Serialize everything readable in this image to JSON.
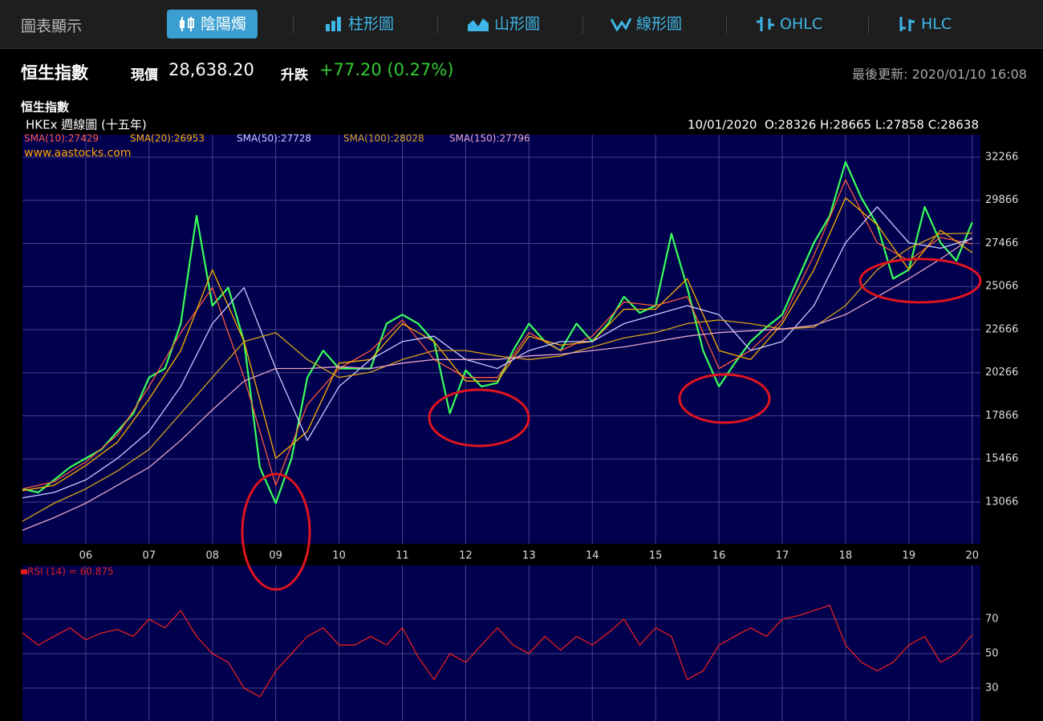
{
  "nav": {
    "label": "圖表顯示",
    "tabs": [
      "陰陽燭",
      "柱形圖",
      "山形圖",
      "線形圖",
      "OHLC",
      "HLC"
    ],
    "active": 0
  },
  "header": {
    "name": "恒生指數",
    "price_label": "現價",
    "price": "28,638.20",
    "change_label": "升跌",
    "change": "+77.20 (0.27%)",
    "updated": "最後更新: 2020/01/10 16:08"
  },
  "chart_data": [
    {
      "type": "line",
      "title": "恒生指數",
      "subtitle": "HKEx 週線圖 (十五年)",
      "annotations": [
        "10/01/2020  O:28326 H:28665 L:27858 C:28638",
        "www.aastocks.com"
      ],
      "xlim": [
        2005,
        2020.13
      ],
      "xticks": [
        {
          "value": 2006,
          "label": "06"
        },
        {
          "value": 2007,
          "label": "07"
        },
        {
          "value": 2008,
          "label": "08"
        },
        {
          "value": 2009,
          "label": "09"
        },
        {
          "value": 2010,
          "label": "10"
        },
        {
          "value": 2011,
          "label": "11"
        },
        {
          "value": 2012,
          "label": "12"
        },
        {
          "value": 2013,
          "label": "13"
        },
        {
          "value": 2014,
          "label": "14"
        },
        {
          "value": 2015,
          "label": "15"
        },
        {
          "value": 2016,
          "label": "16"
        },
        {
          "value": 2017,
          "label": "17"
        },
        {
          "value": 2018,
          "label": "18"
        },
        {
          "value": 2019,
          "label": "19"
        },
        {
          "value": 2020,
          "label": "20"
        }
      ],
      "ylim": [
        10744,
        33516
      ],
      "yticks": [
        13066,
        15466,
        17866,
        20266,
        22666,
        25066,
        27466,
        29866,
        32266
      ],
      "grid": true,
      "series": [
        {
          "color": "#39ff5a",
          "x": [
            2005,
            2005.25,
            2005.5,
            2005.75,
            2006,
            2006.25,
            2006.5,
            2006.75,
            2007,
            2007.25,
            2007.5,
            2007.75,
            2008,
            2008.25,
            2008.5,
            2008.75,
            2009,
            2009.25,
            2009.5,
            2009.75,
            2010,
            2010.25,
            2010.5,
            2010.75,
            2011,
            2011.25,
            2011.5,
            2011.75,
            2012,
            2012.25,
            2012.5,
            2012.75,
            2013,
            2013.25,
            2013.5,
            2013.75,
            2014,
            2014.25,
            2014.5,
            2014.75,
            2015,
            2015.25,
            2015.5,
            2015.75,
            2016,
            2016.25,
            2016.5,
            2016.75,
            2017,
            2017.25,
            2017.5,
            2017.75,
            2018,
            2018.25,
            2018.5,
            2018.75,
            2019,
            2019.25,
            2019.5,
            2019.75,
            2020
          ],
          "values": [
            13800,
            13600,
            14300,
            15000,
            15500,
            16000,
            17000,
            18000,
            20000,
            20500,
            23000,
            29000,
            24000,
            25000,
            22000,
            15000,
            13000,
            15500,
            20000,
            21500,
            20500,
            20500,
            20500,
            23000,
            23500,
            23000,
            22000,
            18000,
            20400,
            19500,
            19700,
            21500,
            23000,
            22000,
            21500,
            23000,
            22000,
            23000,
            24500,
            23600,
            24000,
            28000,
            25000,
            21500,
            19500,
            20800,
            22000,
            22800,
            23500,
            25500,
            27500,
            29000,
            32000,
            30000,
            28500,
            25500,
            26000,
            29500,
            27500,
            26500,
            28638
          ]
        },
        {
          "name": "SMA(10):27429",
          "color": "#ff5a3c",
          "x": [
            2005,
            2005.5,
            2006,
            2006.5,
            2007,
            2007.5,
            2008,
            2008.5,
            2009,
            2009.5,
            2010,
            2010.5,
            2011,
            2011.5,
            2012,
            2012.5,
            2013,
            2013.5,
            2014,
            2014.5,
            2015,
            2015.5,
            2016,
            2016.5,
            2017,
            2017.5,
            2018,
            2018.5,
            2019,
            2019.5,
            2020
          ],
          "values": [
            13800,
            14200,
            15300,
            16800,
            19500,
            22500,
            25000,
            20000,
            14000,
            18500,
            20500,
            21500,
            23200,
            21000,
            20000,
            20000,
            22500,
            21500,
            22300,
            24200,
            24000,
            24500,
            20500,
            21500,
            23200,
            26800,
            31000,
            27500,
            26500,
            27800,
            27429
          ]
        },
        {
          "name": "SMA(20):26953",
          "color": "#ffb000",
          "x": [
            2005,
            2005.5,
            2006,
            2006.5,
            2007,
            2007.5,
            2008,
            2008.5,
            2009,
            2009.5,
            2010,
            2010.5,
            2011,
            2011.5,
            2012,
            2012.5,
            2013,
            2013.5,
            2014,
            2014.5,
            2015,
            2015.5,
            2016,
            2016.5,
            2017,
            2017.5,
            2018,
            2018.5,
            2019,
            2019.5,
            2020
          ],
          "values": [
            13700,
            14000,
            15100,
            16400,
            18800,
            21500,
            26000,
            22000,
            15500,
            17000,
            20800,
            21000,
            23000,
            22000,
            19800,
            19800,
            22300,
            21800,
            22000,
            23800,
            23800,
            25500,
            21500,
            21000,
            23000,
            26000,
            30000,
            28500,
            26000,
            28200,
            26953
          ]
        },
        {
          "name": "SMA(50):27728",
          "color": "#c8ccff",
          "x": [
            2005,
            2005.5,
            2006,
            2006.5,
            2007,
            2007.5,
            2008,
            2008.5,
            2009,
            2009.5,
            2010,
            2010.5,
            2011,
            2011.5,
            2012,
            2012.5,
            2013,
            2013.5,
            2014,
            2014.5,
            2015,
            2015.5,
            2016,
            2016.5,
            2017,
            2017.5,
            2018,
            2018.5,
            2019,
            2019.5,
            2020
          ],
          "values": [
            13300,
            13600,
            14300,
            15500,
            17000,
            19500,
            23000,
            25000,
            20500,
            16500,
            19500,
            21000,
            22000,
            22300,
            21000,
            20500,
            21500,
            22000,
            22000,
            23000,
            23500,
            24000,
            23500,
            21500,
            22000,
            24000,
            27500,
            29500,
            27500,
            27200,
            27728
          ]
        },
        {
          "name": "SMA(100):28028",
          "color": "#d8a21a",
          "x": [
            2005,
            2005.5,
            2006,
            2006.5,
            2007,
            2007.5,
            2008,
            2008.5,
            2009,
            2009.5,
            2010,
            2010.5,
            2011,
            2011.5,
            2012,
            2012.5,
            2013,
            2013.5,
            2014,
            2014.5,
            2015,
            2015.5,
            2016,
            2016.5,
            2017,
            2017.5,
            2018,
            2018.5,
            2019,
            2019.5,
            2020
          ],
          "values": [
            12000,
            13000,
            13800,
            14800,
            16000,
            18000,
            20000,
            22000,
            22500,
            21000,
            20000,
            20300,
            21000,
            21500,
            21500,
            21200,
            21000,
            21200,
            21700,
            22200,
            22500,
            23000,
            23200,
            23000,
            22700,
            22800,
            24000,
            26000,
            27200,
            28000,
            28028
          ]
        },
        {
          "name": "SMA(150):27796",
          "color": "#e6a6c8",
          "x": [
            2005,
            2005.5,
            2006,
            2006.5,
            2007,
            2007.5,
            2008,
            2008.5,
            2009,
            2009.5,
            2010,
            2010.5,
            2011,
            2011.5,
            2012,
            2012.5,
            2013,
            2013.5,
            2014,
            2014.5,
            2015,
            2015.5,
            2016,
            2016.5,
            2017,
            2017.5,
            2018,
            2018.5,
            2019,
            2019.5,
            2020
          ],
          "values": [
            11500,
            12200,
            13000,
            14000,
            15000,
            16500,
            18200,
            19800,
            20500,
            20500,
            20600,
            20500,
            20800,
            21000,
            21000,
            21000,
            21200,
            21300,
            21500,
            21700,
            22000,
            22300,
            22500,
            22600,
            22700,
            22900,
            23500,
            24500,
            25500,
            26600,
            27796
          ]
        }
      ]
    },
    {
      "type": "line",
      "xlim": [
        2005,
        2020.13
      ],
      "ylim": [
        0,
        100
      ],
      "yticks": [
        30,
        50,
        70
      ],
      "grid": true,
      "series": [
        {
          "name": "RSI (14) = 60.875",
          "color": "#e41e1e",
          "x": [
            2005,
            2005.25,
            2005.5,
            2005.75,
            2006,
            2006.25,
            2006.5,
            2006.75,
            2007,
            2007.25,
            2007.5,
            2007.75,
            2008,
            2008.25,
            2008.5,
            2008.75,
            2009,
            2009.25,
            2009.5,
            2009.75,
            2010,
            2010.25,
            2010.5,
            2010.75,
            2011,
            2011.25,
            2011.5,
            2011.75,
            2012,
            2012.25,
            2012.5,
            2012.75,
            2013,
            2013.25,
            2013.5,
            2013.75,
            2014,
            2014.25,
            2014.5,
            2014.75,
            2015,
            2015.25,
            2015.5,
            2015.75,
            2016,
            2016.25,
            2016.5,
            2016.75,
            2017,
            2017.25,
            2017.5,
            2017.75,
            2018,
            2018.25,
            2018.5,
            2018.75,
            2019,
            2019.25,
            2019.5,
            2019.75,
            2020
          ],
          "values": [
            62,
            55,
            60,
            65,
            58,
            62,
            64,
            60,
            70,
            65,
            75,
            60,
            50,
            45,
            30,
            25,
            40,
            50,
            60,
            65,
            55,
            55,
            60,
            55,
            65,
            48,
            35,
            50,
            45,
            55,
            65,
            55,
            50,
            60,
            52,
            60,
            55,
            62,
            70,
            55,
            65,
            60,
            35,
            40,
            55,
            60,
            65,
            60,
            70,
            72,
            75,
            78,
            55,
            45,
            40,
            45,
            55,
            60,
            45,
            50,
            60.875
          ]
        }
      ]
    }
  ]
}
